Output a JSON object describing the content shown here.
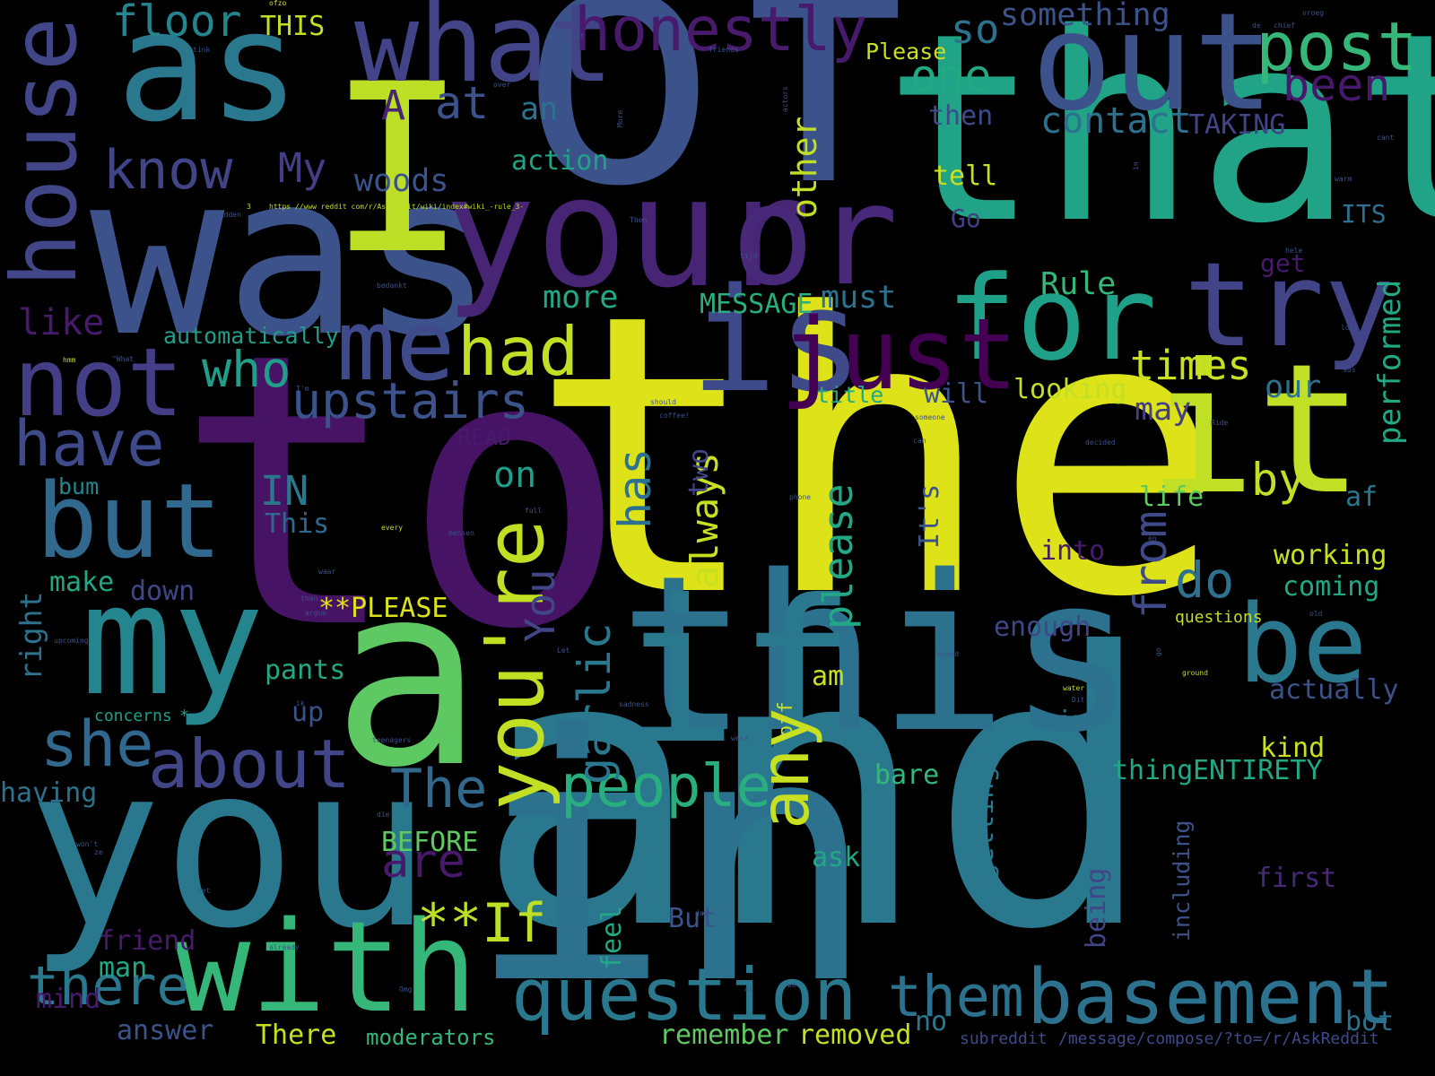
{
  "background": "#000000",
  "words": [
    {
      "text": "the",
      "color": "#dde318"
    },
    {
      "text": "to",
      "color": "#471365"
    },
    {
      "text": "and",
      "color": "#2a788e"
    },
    {
      "text": "of",
      "color": "#3b528b"
    },
    {
      "text": "in",
      "color": "#2c728e"
    },
    {
      "text": "that",
      "color": "#20a386"
    },
    {
      "text": "was",
      "color": "#3b528b"
    },
    {
      "text": "I",
      "color": "#bddf26"
    },
    {
      "text": "you",
      "color": "#2a788e"
    },
    {
      "text": "a",
      "color": "#5ec962"
    },
    {
      "text": "this",
      "color": "#2c728e"
    },
    {
      "text": "your",
      "color": "#482475"
    },
    {
      "text": "it",
      "color": "#c0df25"
    },
    {
      "text": "as",
      "color": "#2a788e"
    },
    {
      "text": "my",
      "color": "#25858e"
    },
    {
      "text": "if",
      "color": "#2a788e"
    },
    {
      "text": "is",
      "color": "#3e4a89"
    },
    {
      "text": "or",
      "color": "#482878"
    },
    {
      "text": "what",
      "color": "#414487"
    },
    {
      "text": "out",
      "color": "#3b528b"
    },
    {
      "text": "with",
      "color": "#35b779"
    },
    {
      "text": "for",
      "color": "#1fa088"
    },
    {
      "text": "try",
      "color": "#414487"
    },
    {
      "text": "be",
      "color": "#2a788e"
    },
    {
      "text": "me",
      "color": "#3e4a89"
    },
    {
      "text": "not",
      "color": "#433e85"
    },
    {
      "text": "but",
      "color": "#31688e"
    },
    {
      "text": "question",
      "color": "#2a788e"
    },
    {
      "text": "basement",
      "color": "#2c728e"
    },
    {
      "text": "house",
      "color": "#404688"
    },
    {
      "text": "had",
      "color": "#c0df25"
    },
    {
      "text": "just",
      "color": "#440154"
    },
    {
      "text": "you're",
      "color": "#c2df23"
    },
    {
      "text": "post",
      "color": "#35b779"
    },
    {
      "text": "about",
      "color": "#404688"
    },
    {
      "text": "she",
      "color": "#31688e"
    },
    {
      "text": "people",
      "color": "#29af7f"
    },
    {
      "text": "honestly",
      "color": "#481a6c"
    },
    {
      "text": "have",
      "color": "#3e4a89"
    },
    {
      "text": "them",
      "color": "#2c728e"
    },
    {
      "text": "there",
      "color": "#2a788e"
    },
    {
      "text": "any",
      "color": "#c8e020"
    },
    {
      "text": "know",
      "color": "#414487"
    },
    {
      "text": "who",
      "color": "#1f9e89"
    },
    {
      "text": "upstairs",
      "color": "#3b528b"
    },
    {
      "text": "The",
      "color": "#31688e"
    },
    {
      "text": "**If",
      "color": "#bddf26"
    },
    {
      "text": "been",
      "color": "#48186a"
    },
    {
      "text": "one",
      "color": "#22a884"
    },
    {
      "text": "floor",
      "color": "#25858e"
    },
    {
      "text": "times",
      "color": "#c8e020"
    },
    {
      "text": "always",
      "color": "#c8e020"
    },
    {
      "text": "garlic",
      "color": "#2a788e"
    },
    {
      "text": "please",
      "color": "#22a884"
    },
    {
      "text": "from",
      "color": "#3e4a89"
    },
    {
      "text": "by",
      "color": "#c0df25"
    },
    {
      "text": "do",
      "color": "#2c728e"
    },
    {
      "text": "are",
      "color": "#48186a"
    },
    {
      "text": "has",
      "color": "#2c728e"
    },
    {
      "text": "You",
      "color": "#404688"
    },
    {
      "text": "at",
      "color": "#3b528b"
    },
    {
      "text": "My",
      "color": "#433e85"
    },
    {
      "text": "so",
      "color": "#2c728e"
    },
    {
      "text": "something",
      "color": "#3b528b"
    },
    {
      "text": "contact",
      "color": "#2c728e"
    },
    {
      "text": "A",
      "color": "#482475"
    },
    {
      "text": "an",
      "color": "#2c728e"
    },
    {
      "text": "action",
      "color": "#20a386"
    },
    {
      "text": "woods",
      "color": "#3b528b"
    },
    {
      "text": "other",
      "color": "#c0df25"
    },
    {
      "text": "then",
      "color": "#3e4a89"
    },
    {
      "text": "TAKING",
      "color": "#414487"
    },
    {
      "text": "THIS",
      "color": "#c0df25"
    },
    {
      "text": "Please",
      "color": "#c8e020"
    },
    {
      "text": "tell",
      "color": "#c8e020"
    },
    {
      "text": "Go",
      "color": "#433e85"
    },
    {
      "text": "ITS",
      "color": "#2c728e"
    },
    {
      "text": "get",
      "color": "#481a6c"
    },
    {
      "text": "Rule",
      "color": "#35b779"
    },
    {
      "text": "must",
      "color": "#2c728e"
    },
    {
      "text": "MESSAGE",
      "color": "#29af7f"
    },
    {
      "text": "more",
      "color": "#22a884"
    },
    {
      "text": "like",
      "color": "#481a6c"
    },
    {
      "text": "automatically",
      "color": "#1f9e89"
    },
    {
      "text": "performed",
      "color": "#22a884"
    },
    {
      "text": "our",
      "color": "#2c728e"
    },
    {
      "text": "looking",
      "color": "#c0df25"
    },
    {
      "text": "will",
      "color": "#3b528b"
    },
    {
      "text": "title",
      "color": "#22a884"
    },
    {
      "text": "may",
      "color": "#433e85"
    },
    {
      "text": "READ",
      "color": "#481a6c"
    },
    {
      "text": "IN",
      "color": "#2a788e"
    },
    {
      "text": "This",
      "color": "#31688e"
    },
    {
      "text": "bum",
      "color": "#25858e"
    },
    {
      "text": "on",
      "color": "#1f9e89"
    },
    {
      "text": "two",
      "color": "#404688"
    },
    {
      "text": "It's",
      "color": "#3b528b"
    },
    {
      "text": "life",
      "color": "#5ec962"
    },
    {
      "text": "af",
      "color": "#2a788e"
    },
    {
      "text": "into",
      "color": "#481a6c"
    },
    {
      "text": "working",
      "color": "#c8e020"
    },
    {
      "text": "coming",
      "color": "#22a884"
    },
    {
      "text": "make",
      "color": "#22a884"
    },
    {
      "text": "down",
      "color": "#404688"
    },
    {
      "text": "**PLEASE",
      "color": "#dde318"
    },
    {
      "text": "right",
      "color": "#2c728e"
    },
    {
      "text": "questions",
      "color": "#c0df25"
    },
    {
      "text": "enough",
      "color": "#404688"
    },
    {
      "text": "pants",
      "color": "#22a884"
    },
    {
      "text": "am",
      "color": "#c8e020"
    },
    {
      "text": "actually",
      "color": "#3b528b"
    },
    {
      "text": "up",
      "color": "#3b528b"
    },
    {
      "text": "off",
      "color": "#c8e020"
    },
    {
      "text": "mix",
      "color": "#2c728e"
    },
    {
      "text": "concerns",
      "color": "#1f9e89"
    },
    {
      "text": "*",
      "color": "#1f9e89"
    },
    {
      "text": "kind",
      "color": "#c8e020"
    },
    {
      "text": "thing",
      "color": "#22a884"
    },
    {
      "text": "ENTIRETY",
      "color": "#22a884"
    },
    {
      "text": "bare",
      "color": "#35b779"
    },
    {
      "text": "having",
      "color": "#2c728e"
    },
    {
      "text": "getting",
      "color": "#2a788e"
    },
    {
      "text": "BEFORE",
      "color": "#5ec962"
    },
    {
      "text": "ask",
      "color": "#22a884"
    },
    {
      "text": "being",
      "color": "#414487"
    },
    {
      "text": "including",
      "color": "#3b528b"
    },
    {
      "text": "first",
      "color": "#482878"
    },
    {
      "text": "feel",
      "color": "#22a884"
    },
    {
      "text": "But",
      "color": "#3b528b"
    },
    {
      "text": "friend",
      "color": "#481a6c"
    },
    {
      "text": "man",
      "color": "#22a884"
    },
    {
      "text": "mind",
      "color": "#481a6c"
    },
    {
      "text": "answer",
      "color": "#3b528b"
    },
    {
      "text": "There",
      "color": "#c8e020"
    },
    {
      "text": "moderators",
      "color": "#35b779"
    },
    {
      "text": "remember",
      "color": "#5ec962"
    },
    {
      "text": "removed",
      "color": "#c0df25"
    },
    {
      "text": "no",
      "color": "#2a788e"
    },
    {
      "text": "subreddit",
      "color": "#3e4a89"
    },
    {
      "text": "/message/compose/?to=/r/AskReddit",
      "color": "#3e4a89"
    },
    {
      "text": "bot",
      "color": "#2c728e"
    },
    {
      "text": "3",
      "color": "#b8de29"
    },
    {
      "text": "https //www reddit com/r/AskReddit/wiki/index#wiki_-rule_3-",
      "color": "#c0df25"
    },
    {
      "text": "ofzo",
      "color": "#dde318"
    },
    {
      "text": "vroeg",
      "color": "#3b528b"
    },
    {
      "text": "de",
      "color": "#3b528b"
    },
    {
      "text": "chief",
      "color": "#3b528b"
    },
    {
      "text": "What",
      "color": "#3b528b"
    },
    {
      "text": "friends",
      "color": "#3b528b"
    },
    {
      "text": "tink",
      "color": "#3b528b"
    },
    {
      "text": "over",
      "color": "#3b528b"
    },
    {
      "text": "actors",
      "color": "#3b528b"
    },
    {
      "text": "More",
      "color": "#3b528b"
    },
    {
      "text": "cant",
      "color": "#3b528b"
    },
    {
      "text": "hadden",
      "color": "#3b528b"
    },
    {
      "text": "Then",
      "color": "#3b528b"
    },
    {
      "text": "in",
      "color": "#3b528b"
    },
    {
      "text": "warm",
      "color": "#3b528b"
    },
    {
      "text": "bedankt",
      "color": "#3b528b"
    },
    {
      "text": "tijd",
      "color": "#3b528b"
    },
    {
      "text": "hele",
      "color": "#3b528b"
    },
    {
      "text": "hmm",
      "color": "#c0df25"
    },
    {
      "text": "\"What",
      "color": "#3b528b"
    },
    {
      "text": "I'm",
      "color": "#3b528b"
    },
    {
      "text": "lost",
      "color": "#3b528b"
    },
    {
      "text": "90s",
      "color": "#3b528b"
    },
    {
      "text": "should",
      "color": "#3b528b"
    },
    {
      "text": "someone",
      "color": "#3b528b"
    },
    {
      "text": "coffee!",
      "color": "#3b528b"
    },
    {
      "text": "Ride",
      "color": "#3b528b"
    },
    {
      "text": "can",
      "color": "#3b528b"
    },
    {
      "text": "decided",
      "color": "#3b528b"
    },
    {
      "text": "phone",
      "color": "#3b528b"
    },
    {
      "text": "every",
      "color": "#c0df25"
    },
    {
      "text": "mensen",
      "color": "#3b528b"
    },
    {
      "text": "full",
      "color": "#3b528b"
    },
    {
      "text": "en",
      "color": "#3b528b"
    },
    {
      "text": "than",
      "color": "#3b528b"
    },
    {
      "text": "waar",
      "color": "#3b528b"
    },
    {
      "text": "argue",
      "color": "#3b528b"
    },
    {
      "text": "old",
      "color": "#3b528b"
    },
    {
      "text": "upcoming",
      "color": "#3b528b"
    },
    {
      "text": "Let",
      "color": "#3b528b"
    },
    {
      "text": "spend",
      "color": "#3b528b"
    },
    {
      "text": "go",
      "color": "#3b528b"
    },
    {
      "text": "ground",
      "color": "#c0df25"
    },
    {
      "text": "ik",
      "color": "#3b528b"
    },
    {
      "text": "sadness",
      "color": "#3b528b"
    },
    {
      "text": "water",
      "color": "#c0df25"
    },
    {
      "text": "Dit",
      "color": "#3b528b"
    },
    {
      "text": "teenagers",
      "color": "#3b528b"
    },
    {
      "text": "were",
      "color": "#3b528b"
    },
    {
      "text": "die",
      "color": "#3b528b"
    },
    {
      "text": "won't",
      "color": "#3b528b"
    },
    {
      "text": "ze",
      "color": "#3b528b"
    },
    {
      "text": "het",
      "color": "#3b528b"
    },
    {
      "text": "day",
      "color": "#3b528b"
    },
    {
      "text": "already",
      "color": "#3b528b"
    },
    {
      "text": "Omg",
      "color": "#3b528b"
    },
    {
      "text": "ai",
      "color": "#3b528b"
    },
    {
      "text": "we",
      "color": "#3b528b"
    },
    {
      "text": "games",
      "color": "#c0df25"
    }
  ]
}
